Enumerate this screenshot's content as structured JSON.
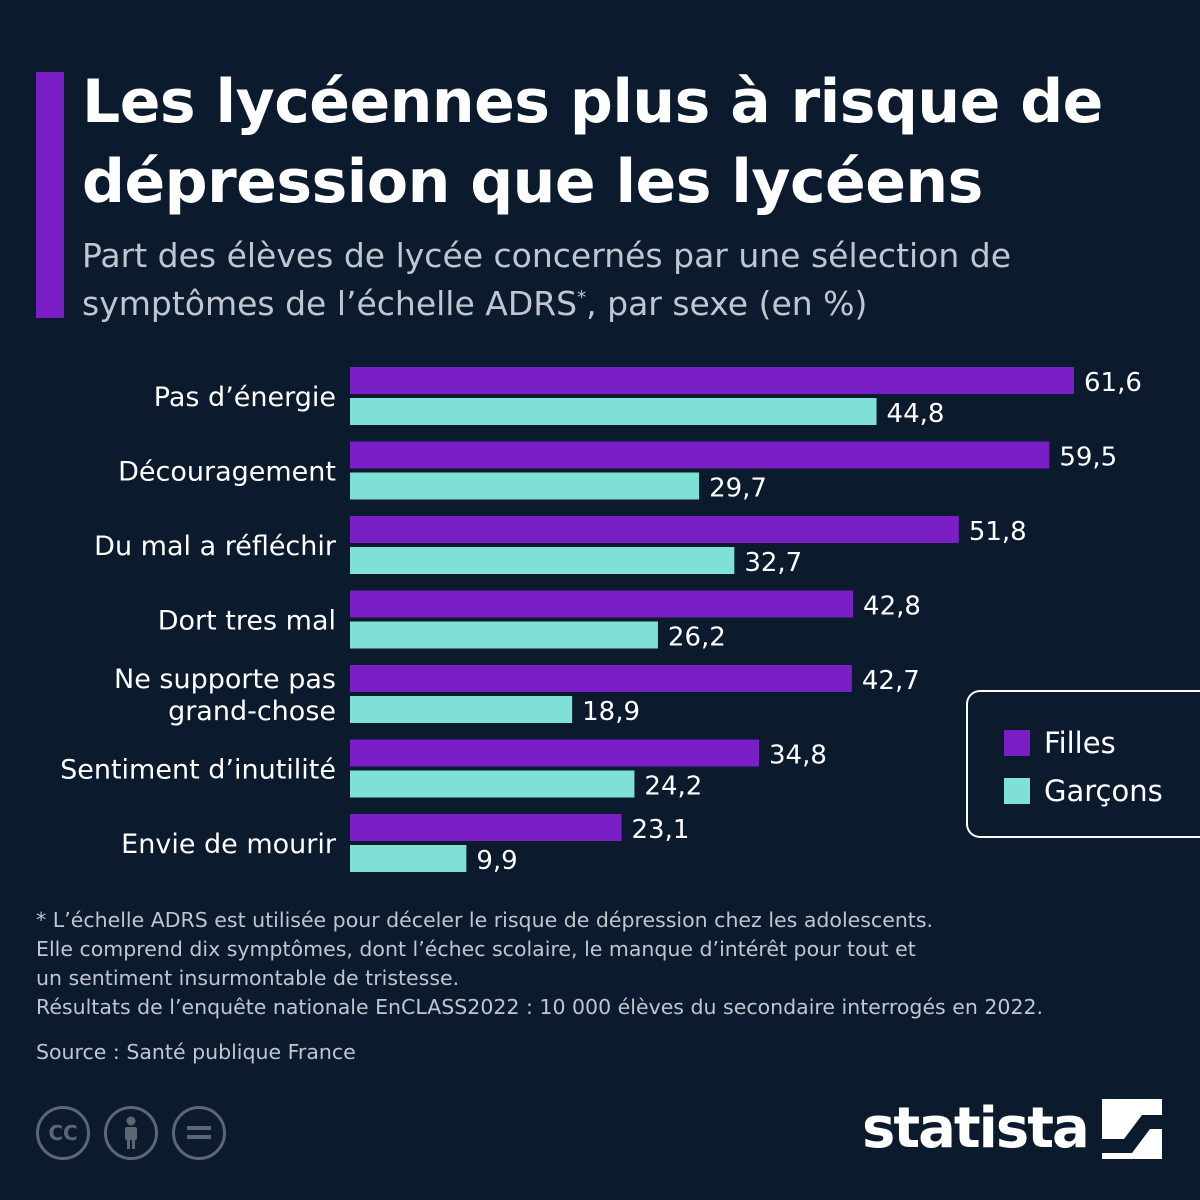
{
  "header": {
    "title": "Les lycéennes plus à risque de dépression que les lycéens",
    "subtitle_main": "Part des élèves de lycée concernés par une sélection de symptômes de l’échelle ADRS",
    "subtitle_mark": "*",
    "subtitle_tail": ", par sexe (en %)"
  },
  "colors": {
    "accent": "#7a1fc6",
    "filles": "#7a1fc6",
    "garcons": "#7fe0d6",
    "background": "#0b1a2d"
  },
  "chart_data": {
    "type": "bar",
    "orientation": "horizontal",
    "categories": [
      "Pas d’énergie",
      "Découragement",
      "Du mal a réfléchir",
      "Dort tres mal",
      "Ne supporte pas grand-chose",
      "Sentiment d’inutilité",
      "Envie de mourir"
    ],
    "category_lines": [
      [
        "Pas d’énergie"
      ],
      [
        "Découragement"
      ],
      [
        "Du mal a réfléchir"
      ],
      [
        "Dort tres mal"
      ],
      [
        "Ne supporte pas",
        "grand-chose"
      ],
      [
        "Sentiment d’inutilité"
      ],
      [
        "Envie de mourir"
      ]
    ],
    "series": [
      {
        "name": "Filles",
        "color": "#7a1fc6",
        "values": [
          61.6,
          59.5,
          51.8,
          42.8,
          42.7,
          34.8,
          23.1
        ],
        "labels": [
          "61,6",
          "59,5",
          "51,8",
          "42,8",
          "42,7",
          "34,8",
          "23,1"
        ]
      },
      {
        "name": "Garçons",
        "color": "#7fe0d6",
        "values": [
          44.8,
          29.7,
          32.7,
          26.2,
          18.9,
          24.2,
          9.9
        ],
        "labels": [
          "44,8",
          "29,7",
          "32,7",
          "26,2",
          "18,9",
          "24,2",
          "9,9"
        ]
      }
    ],
    "xlim": [
      0,
      61.6
    ],
    "grid": false,
    "legend_position": "right"
  },
  "legend": {
    "filles": "Filles",
    "garcons": "Garçons"
  },
  "notes": [
    "* L’échelle ADRS est utilisée pour déceler le risque de dépression chez les adolescents.",
    "Elle comprend dix symptômes, dont l’échec scolaire, le manque d’intérêt pour tout et",
    "un sentiment insurmontable de tristesse.",
    "Résultats de l’enquête nationale EnCLASS2022 : 10 000 élèves du secondaire interrogés en 2022."
  ],
  "source": "Source : Santé publique France",
  "license_icons": {
    "cc": "CC",
    "by": "person-icon",
    "nd": "equals-icon"
  },
  "brand": {
    "name": "statista"
  }
}
